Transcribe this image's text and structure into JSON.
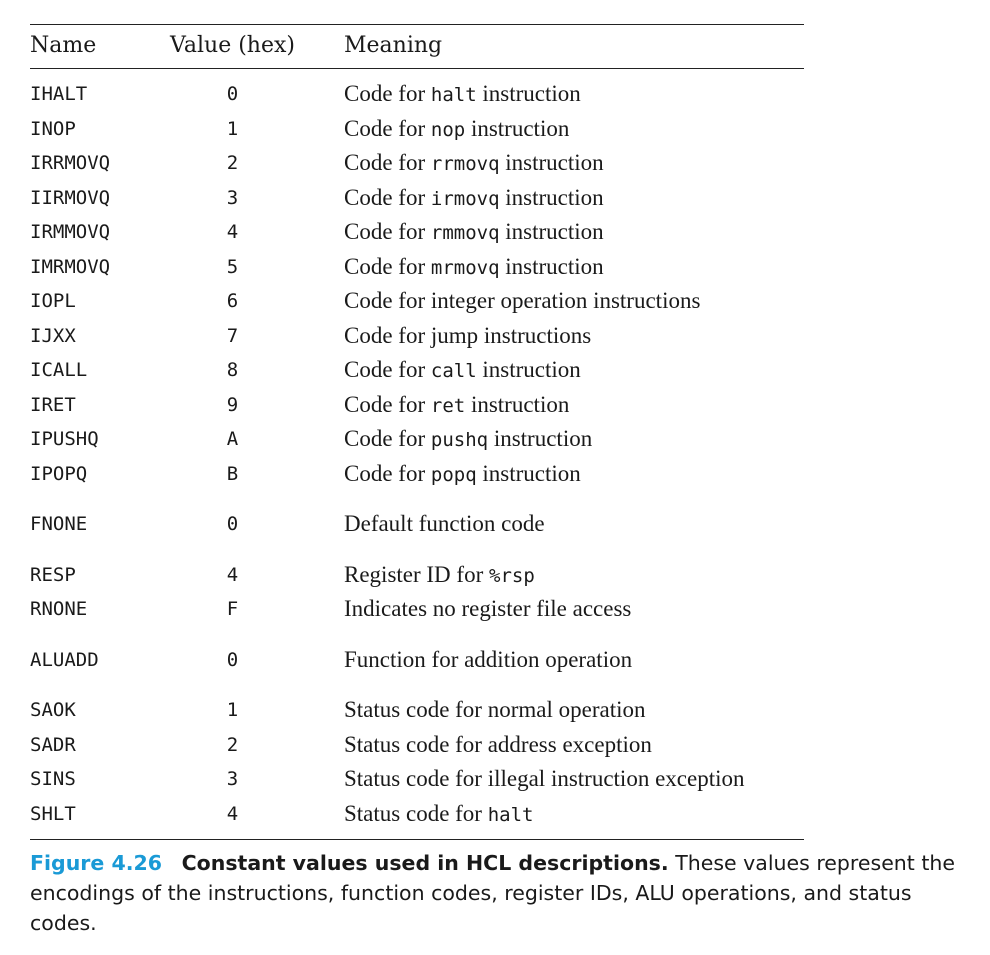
{
  "table": {
    "headers": {
      "name": "Name",
      "value": "Value (hex)",
      "meaning": "Meaning"
    },
    "groups": [
      [
        {
          "name": "IHALT",
          "value": "0",
          "pre": "Code for ",
          "code": "halt",
          "post": " instruction"
        },
        {
          "name": "INOP",
          "value": "1",
          "pre": "Code for ",
          "code": "nop",
          "post": " instruction"
        },
        {
          "name": "IRRMOVQ",
          "value": "2",
          "pre": "Code for ",
          "code": "rrmovq",
          "post": " instruction"
        },
        {
          "name": "IIRMOVQ",
          "value": "3",
          "pre": "Code for ",
          "code": "irmovq",
          "post": " instruction"
        },
        {
          "name": "IRMMOVQ",
          "value": "4",
          "pre": "Code for ",
          "code": "rmmovq",
          "post": " instruction"
        },
        {
          "name": "IMRMOVQ",
          "value": "5",
          "pre": "Code for ",
          "code": "mrmovq",
          "post": " instruction"
        },
        {
          "name": "IOPL",
          "value": "6",
          "pre": "Code for integer operation instructions",
          "code": "",
          "post": ""
        },
        {
          "name": "IJXX",
          "value": "7",
          "pre": "Code for jump instructions",
          "code": "",
          "post": ""
        },
        {
          "name": "ICALL",
          "value": "8",
          "pre": "Code for ",
          "code": "call",
          "post": " instruction"
        },
        {
          "name": "IRET",
          "value": "9",
          "pre": "Code for ",
          "code": "ret",
          "post": " instruction"
        },
        {
          "name": "IPUSHQ",
          "value": "A",
          "pre": "Code for ",
          "code": "pushq",
          "post": " instruction"
        },
        {
          "name": "IPOPQ",
          "value": "B",
          "pre": "Code for ",
          "code": "popq",
          "post": " instruction"
        }
      ],
      [
        {
          "name": "FNONE",
          "value": "0",
          "pre": "Default function code",
          "code": "",
          "post": ""
        }
      ],
      [
        {
          "name": "RESP",
          "value": "4",
          "pre": "Register ID for ",
          "code": "%rsp",
          "post": ""
        },
        {
          "name": "RNONE",
          "value": "F",
          "pre": "Indicates no register file access",
          "code": "",
          "post": ""
        }
      ],
      [
        {
          "name": "ALUADD",
          "value": "0",
          "pre": "Function for addition operation",
          "code": "",
          "post": ""
        }
      ],
      [
        {
          "name": "SAOK",
          "value": "1",
          "pre": "Status code for normal operation",
          "code": "",
          "post": ""
        },
        {
          "name": "SADR",
          "value": "2",
          "pre": "Status code for address exception",
          "code": "",
          "post": ""
        },
        {
          "name": "SINS",
          "value": "3",
          "pre": "Status code for illegal instruction exception",
          "code": "",
          "post": ""
        },
        {
          "name": "SHLT",
          "value": "4",
          "pre": "Status code for ",
          "code": "halt",
          "post": ""
        }
      ]
    ]
  },
  "caption": {
    "figure_number": "Figure 4.26",
    "title": "Constant values used in HCL descriptions.",
    "text": "These values represent the encodings of the instructions, function codes, register IDs, ALU operations, and status codes."
  }
}
